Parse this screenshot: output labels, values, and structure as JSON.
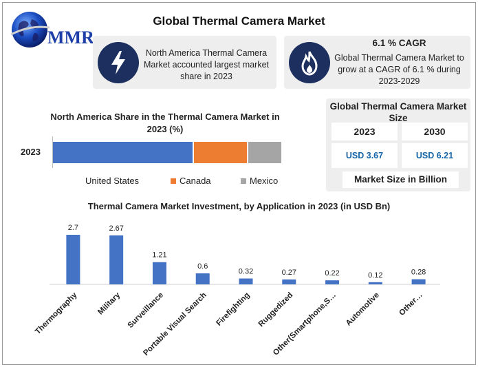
{
  "colors": {
    "accent_blue": "#4472c4",
    "canada_orange": "#ed7d31",
    "mexico_gray": "#a5a5a5",
    "icon_navy": "#1c2f5e",
    "value_blue": "#1565a8"
  },
  "logo": {
    "text": "MMR"
  },
  "title": "Global Thermal Camera Market",
  "cards": {
    "na": {
      "icon": "lightning-icon",
      "text": "North America Thermal Camera Market accounted largest market share in 2023"
    },
    "cagr": {
      "icon": "flame-icon",
      "heading": "6.1 % CAGR",
      "text": "Global Thermal Camera Market to grow at a CAGR of 6.1 % during 2023-2029"
    }
  },
  "market_size": {
    "title": "Global Thermal Camera Market Size",
    "years": [
      "2023",
      "2030"
    ],
    "values": [
      "USD 3.67",
      "USD 6.21"
    ],
    "label": "Market Size in Billion"
  },
  "chart_data": [
    {
      "type": "bar",
      "orientation": "horizontal-stacked",
      "title": "North America Share in the Thermal Camera Market in 2023 (%)",
      "categories": [
        "2023"
      ],
      "series": [
        {
          "name": "United States",
          "values": [
            62
          ]
        },
        {
          "name": "Canada",
          "values": [
            24
          ]
        },
        {
          "name": "Mexico",
          "values": [
            15
          ]
        }
      ],
      "legend_position": "bottom",
      "xlim": [
        0,
        101
      ]
    },
    {
      "type": "bar",
      "title": "Thermal Camera Market Investment, by Application in 2023 (in USD Bn)",
      "categories": [
        "Thermography",
        "Military",
        "Surveillance",
        "Portable Visual Search",
        "Firefighting",
        "Ruggedized",
        "Other(Smartphone,S…",
        "Automotive",
        "Other…"
      ],
      "values": [
        2.7,
        2.67,
        1.21,
        0.6,
        0.32,
        0.27,
        0.22,
        0.12,
        0.28
      ],
      "value_labels": [
        "2.7",
        "2.67",
        "1.21",
        "0.6",
        "0.32",
        "0.27",
        "0.22",
        "0.12",
        "0.28"
      ],
      "ylim": [
        0,
        2.7
      ],
      "grid": false
    }
  ]
}
